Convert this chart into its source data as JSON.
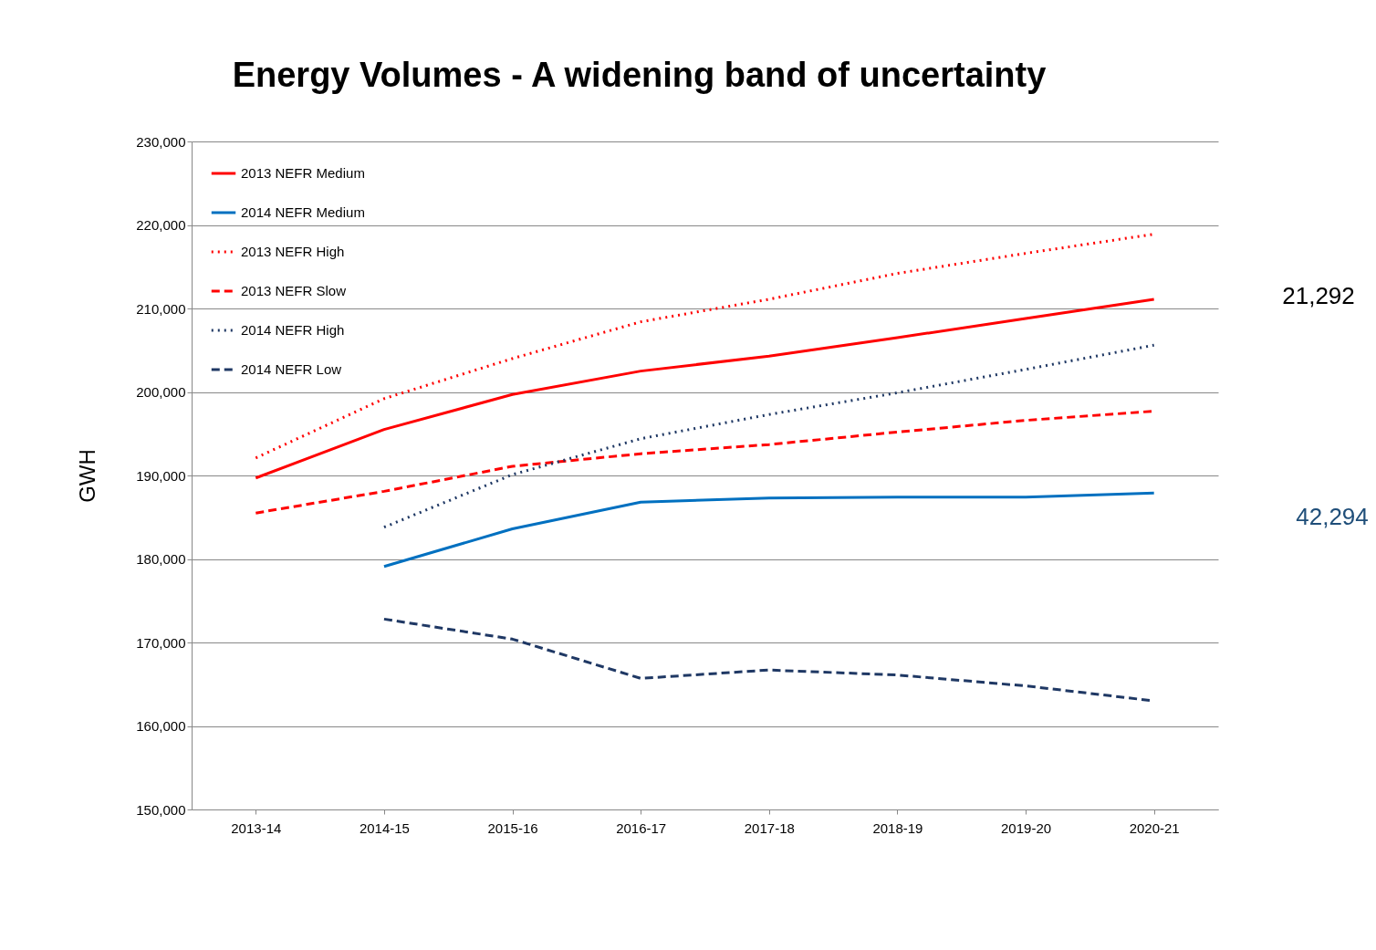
{
  "chart_data": {
    "type": "line",
    "title": "Energy Volumes  - A widening band of uncertainty",
    "ylabel": "GWH",
    "categories": [
      "2013-14",
      "2014-15",
      "2015-16",
      "2016-17",
      "2017-18",
      "2018-19",
      "2019-20",
      "2020-21"
    ],
    "series": [
      {
        "name": "2013 NEFR Medium",
        "color": "#ff0000",
        "line_style": "solid",
        "values": [
          189700,
          195500,
          199700,
          202500,
          204300,
          206500,
          208800,
          211100
        ]
      },
      {
        "name": "2014 NEFR Medium",
        "color": "#0070c0",
        "line_style": "solid",
        "values": [
          null,
          179100,
          183600,
          186800,
          187300,
          187400,
          187400,
          187900
        ]
      },
      {
        "name": "2013 NEFR High",
        "color": "#ff0000",
        "line_style": "dotted",
        "values": [
          192100,
          199200,
          204000,
          208400,
          211100,
          214200,
          216600,
          218900
        ]
      },
      {
        "name": "2013 NEFR Slow",
        "color": "#ff0000",
        "line_style": "dashed",
        "values": [
          185500,
          188100,
          191100,
          192600,
          193700,
          195200,
          196600,
          197700
        ]
      },
      {
        "name": "2014 NEFR High",
        "color": "#1f3864",
        "line_style": "dotted",
        "values": [
          null,
          183800,
          190100,
          194400,
          197300,
          199900,
          202700,
          205600
        ]
      },
      {
        "name": "2014 NEFR Low",
        "color": "#1f3864",
        "line_style": "dashed",
        "values": [
          null,
          172800,
          170400,
          165700,
          166700,
          166100,
          164800,
          163000
        ]
      }
    ],
    "ylim": [
      150000,
      230000
    ],
    "yticks": [
      {
        "value": 150000,
        "label": "150,000"
      },
      {
        "value": 160000,
        "label": "160,000"
      },
      {
        "value": 170000,
        "label": "170,000"
      },
      {
        "value": 180000,
        "label": "180,000"
      },
      {
        "value": 190000,
        "label": "190,000"
      },
      {
        "value": 200000,
        "label": "200,000"
      },
      {
        "value": 210000,
        "label": "210,000"
      },
      {
        "value": 220000,
        "label": "220,000"
      },
      {
        "value": 230000,
        "label": "230,000"
      }
    ],
    "grid": "y",
    "legend": "top left",
    "annotations": [
      "21,292",
      "42,294"
    ]
  }
}
